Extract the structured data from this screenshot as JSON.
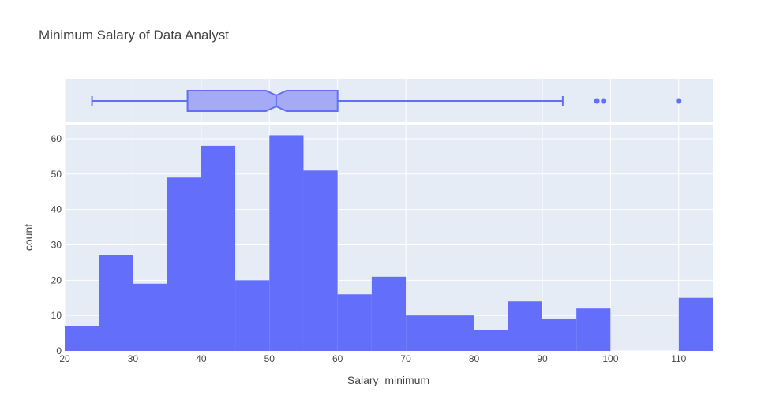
{
  "chart_data": {
    "type": "histogram",
    "title": "Minimum Salary of Data Analyst",
    "xlabel": "Salary_minimum",
    "ylabel": "count",
    "xlim": [
      20,
      115
    ],
    "ylim": [
      0,
      64
    ],
    "grid": true,
    "x_ticks": [
      20,
      30,
      40,
      50,
      60,
      70,
      80,
      90,
      100,
      110
    ],
    "y_ticks": [
      0,
      10,
      20,
      30,
      40,
      50,
      60
    ],
    "bin_width": 5,
    "bins": [
      {
        "start": 20,
        "end": 25,
        "count": 7
      },
      {
        "start": 25,
        "end": 30,
        "count": 27
      },
      {
        "start": 30,
        "end": 35,
        "count": 19
      },
      {
        "start": 35,
        "end": 40,
        "count": 49
      },
      {
        "start": 40,
        "end": 45,
        "count": 58
      },
      {
        "start": 45,
        "end": 50,
        "count": 20
      },
      {
        "start": 50,
        "end": 55,
        "count": 61
      },
      {
        "start": 55,
        "end": 60,
        "count": 51
      },
      {
        "start": 60,
        "end": 65,
        "count": 16
      },
      {
        "start": 65,
        "end": 70,
        "count": 21
      },
      {
        "start": 70,
        "end": 75,
        "count": 10
      },
      {
        "start": 75,
        "end": 80,
        "count": 10
      },
      {
        "start": 80,
        "end": 85,
        "count": 6
      },
      {
        "start": 85,
        "end": 90,
        "count": 14
      },
      {
        "start": 90,
        "end": 95,
        "count": 9
      },
      {
        "start": 95,
        "end": 100,
        "count": 12
      },
      {
        "start": 100,
        "end": 105,
        "count": 0
      },
      {
        "start": 105,
        "end": 110,
        "count": 0
      },
      {
        "start": 110,
        "end": 115,
        "count": 15
      }
    ],
    "marginal_box": {
      "lower_fence": 24,
      "q1": 38,
      "median": 51,
      "q3": 60,
      "upper_fence": 93,
      "notch_low": 49.5,
      "notch_high": 52.5,
      "outliers": [
        98,
        99,
        110
      ]
    },
    "colors": {
      "bar": "#636efa",
      "plot_bg": "#e5ecf6",
      "grid": "#ffffff",
      "box_fill": "#a4aaf5",
      "box_line": "#636efa"
    }
  }
}
